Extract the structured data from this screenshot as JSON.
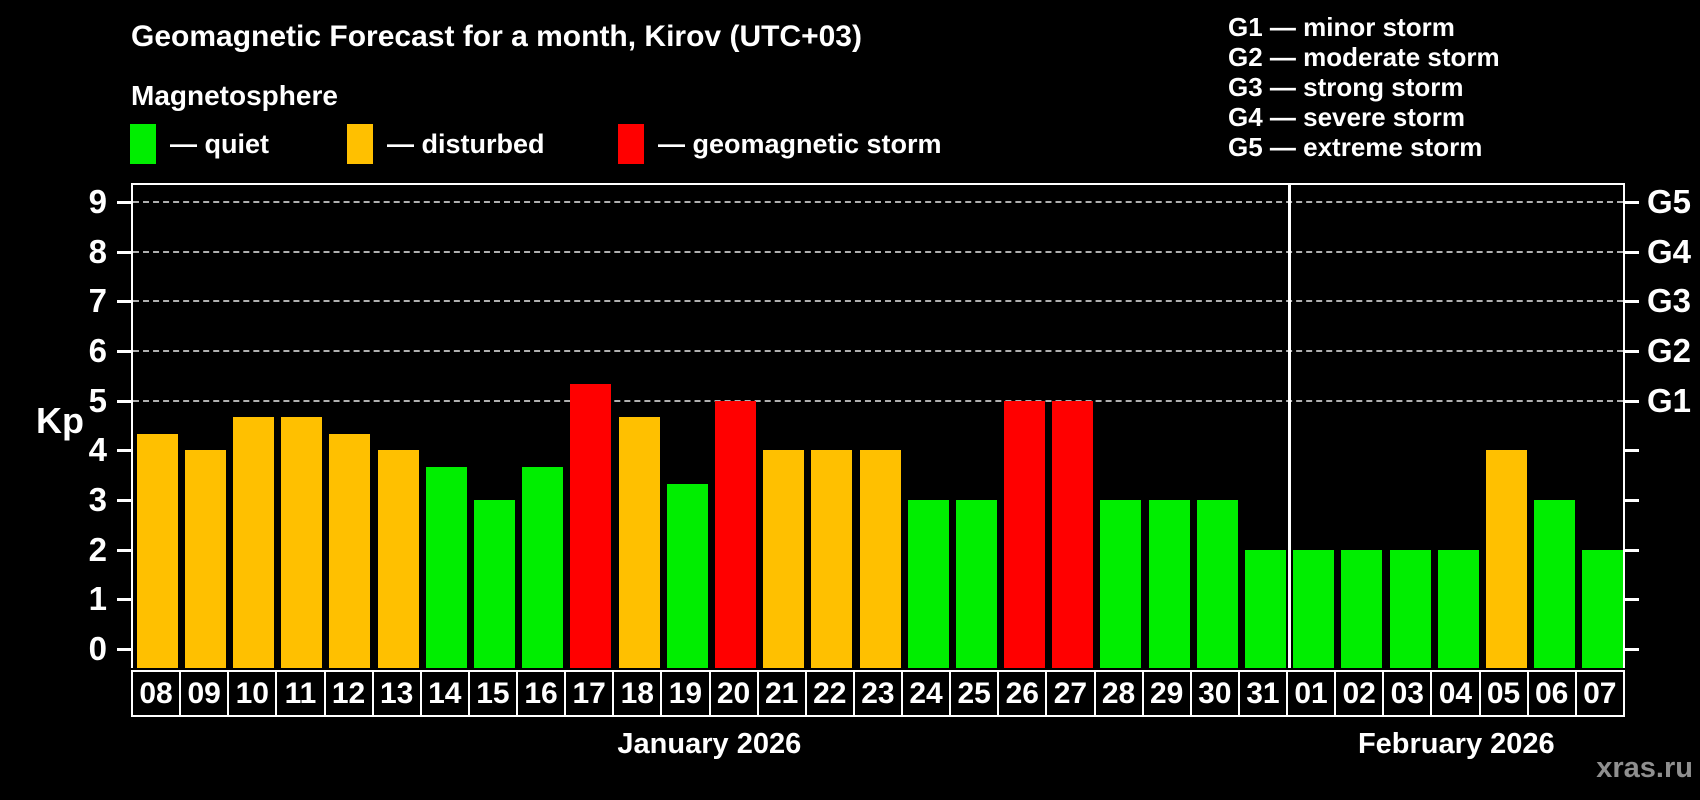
{
  "header": {
    "title": "Geomagnetic Forecast for a month, Kirov (UTC+03)",
    "subtitle": "Magnetosphere"
  },
  "legend": {
    "items": [
      {
        "status": "quiet",
        "label": "— quiet"
      },
      {
        "status": "disturbed",
        "label": "— disturbed"
      },
      {
        "status": "storm",
        "label": "— geomagnetic storm"
      }
    ]
  },
  "g_legend": {
    "lines": [
      "G1 — minor storm",
      "G2 — moderate storm",
      "G3 — strong storm",
      "G4 — severe storm",
      "G5 — extreme storm"
    ]
  },
  "watermark": "xras.ru",
  "chart_data": {
    "type": "bar",
    "title": "Geomagnetic Forecast for a month, Kirov (UTC+03)",
    "subtitle": "Magnetosphere",
    "ylabel": "Kp",
    "ylim": [
      0,
      9
    ],
    "yticks": [
      0,
      1,
      2,
      3,
      4,
      5,
      6,
      7,
      8,
      9
    ],
    "grid_levels": [
      5,
      6,
      7,
      8,
      9
    ],
    "right_axis_labels": [
      {
        "kp": 5,
        "label": "G1"
      },
      {
        "kp": 6,
        "label": "G2"
      },
      {
        "kp": 7,
        "label": "G3"
      },
      {
        "kp": 8,
        "label": "G4"
      },
      {
        "kp": 9,
        "label": "G5"
      }
    ],
    "legend_position": "top-left",
    "grid": "dashed horizontal at storm levels only",
    "months": [
      {
        "label": "January 2026",
        "days": 24
      },
      {
        "label": "February 2026",
        "days": 7
      }
    ],
    "categories": [
      "08",
      "09",
      "10",
      "11",
      "12",
      "13",
      "14",
      "15",
      "16",
      "17",
      "18",
      "19",
      "20",
      "21",
      "22",
      "23",
      "24",
      "25",
      "26",
      "27",
      "28",
      "29",
      "30",
      "31",
      "01",
      "02",
      "03",
      "04",
      "05",
      "06",
      "07"
    ],
    "bars": [
      {
        "day": "08",
        "kp": 4.33,
        "status": "disturbed"
      },
      {
        "day": "09",
        "kp": 4.0,
        "status": "disturbed"
      },
      {
        "day": "10",
        "kp": 4.67,
        "status": "disturbed"
      },
      {
        "day": "11",
        "kp": 4.67,
        "status": "disturbed"
      },
      {
        "day": "12",
        "kp": 4.33,
        "status": "disturbed"
      },
      {
        "day": "13",
        "kp": 4.0,
        "status": "disturbed"
      },
      {
        "day": "14",
        "kp": 3.67,
        "status": "quiet"
      },
      {
        "day": "15",
        "kp": 3.0,
        "status": "quiet"
      },
      {
        "day": "16",
        "kp": 3.67,
        "status": "quiet"
      },
      {
        "day": "17",
        "kp": 5.33,
        "status": "storm"
      },
      {
        "day": "18",
        "kp": 4.67,
        "status": "disturbed"
      },
      {
        "day": "19",
        "kp": 3.33,
        "status": "quiet"
      },
      {
        "day": "20",
        "kp": 5.0,
        "status": "storm"
      },
      {
        "day": "21",
        "kp": 4.0,
        "status": "disturbed"
      },
      {
        "day": "22",
        "kp": 4.0,
        "status": "disturbed"
      },
      {
        "day": "23",
        "kp": 4.0,
        "status": "disturbed"
      },
      {
        "day": "24",
        "kp": 3.0,
        "status": "quiet"
      },
      {
        "day": "25",
        "kp": 3.0,
        "status": "quiet"
      },
      {
        "day": "26",
        "kp": 5.0,
        "status": "storm"
      },
      {
        "day": "27",
        "kp": 5.0,
        "status": "storm"
      },
      {
        "day": "28",
        "kp": 3.0,
        "status": "quiet"
      },
      {
        "day": "29",
        "kp": 3.0,
        "status": "quiet"
      },
      {
        "day": "30",
        "kp": 3.0,
        "status": "quiet"
      },
      {
        "day": "31",
        "kp": 2.0,
        "status": "quiet"
      },
      {
        "day": "01",
        "kp": 2.0,
        "status": "quiet"
      },
      {
        "day": "02",
        "kp": 2.0,
        "status": "quiet"
      },
      {
        "day": "03",
        "kp": 2.0,
        "status": "quiet"
      },
      {
        "day": "04",
        "kp": 2.0,
        "status": "quiet"
      },
      {
        "day": "05",
        "kp": 4.0,
        "status": "disturbed"
      },
      {
        "day": "06",
        "kp": 3.0,
        "status": "quiet"
      },
      {
        "day": "07",
        "kp": 2.0,
        "status": "quiet"
      }
    ],
    "colors": {
      "quiet": "#00ee00",
      "disturbed": "#ffc000",
      "storm": "#ff0000",
      "grid": "#b0b0b0",
      "axis": "#ffffff",
      "watermark": "#8f8f8f"
    }
  }
}
